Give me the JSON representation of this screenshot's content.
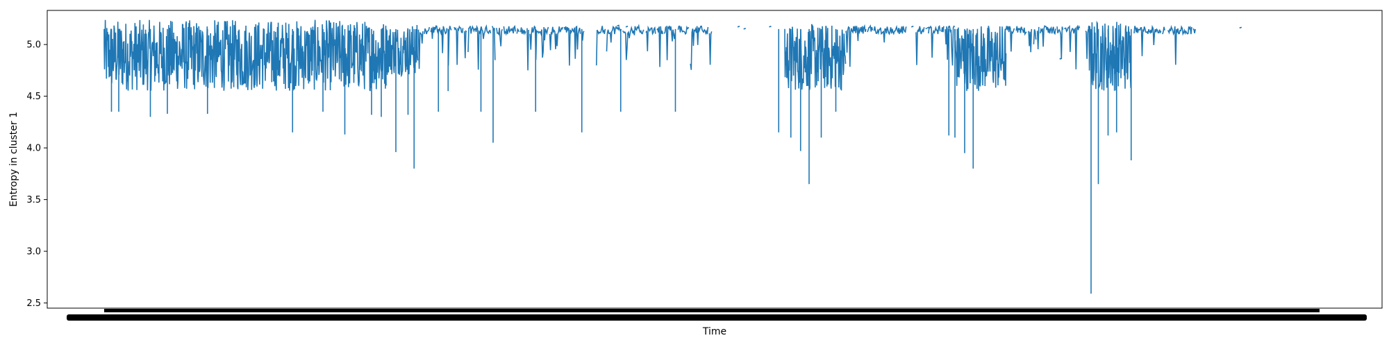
{
  "chart_data": {
    "type": "line",
    "title": "",
    "xlabel": "Time",
    "ylabel": "Entropy in cluster 1",
    "ylim": [
      2.45,
      5.33
    ],
    "yticks": [
      2.5,
      3.0,
      3.5,
      4.0,
      4.5,
      5.0
    ],
    "ytick_labels": [
      "2.5",
      "3.0",
      "3.5",
      "4.0",
      "4.5",
      "5.0"
    ],
    "x_tick_labels_note": "x tick labels are densely overlapping timestamps and unreadable",
    "x_range": [
      0,
      1000
    ],
    "grid": false,
    "legend": "none",
    "series": [
      {
        "color": "#1f77b4",
        "baseline": 5.15,
        "spikes": [
          {
            "x": 6,
            "y": 4.35
          },
          {
            "x": 12,
            "y": 4.35
          },
          {
            "x": 38,
            "y": 4.3
          },
          {
            "x": 52,
            "y": 4.33
          },
          {
            "x": 85,
            "y": 4.33
          },
          {
            "x": 155,
            "y": 4.15
          },
          {
            "x": 180,
            "y": 4.35
          },
          {
            "x": 198,
            "y": 4.13
          },
          {
            "x": 220,
            "y": 4.32
          },
          {
            "x": 228,
            "y": 4.3
          },
          {
            "x": 240,
            "y": 3.96
          },
          {
            "x": 250,
            "y": 4.32
          },
          {
            "x": 255,
            "y": 3.8
          },
          {
            "x": 275,
            "y": 4.35
          },
          {
            "x": 283,
            "y": 4.55
          },
          {
            "x": 310,
            "y": 4.35
          },
          {
            "x": 320,
            "y": 4.05
          },
          {
            "x": 355,
            "y": 4.35
          },
          {
            "x": 393,
            "y": 4.15
          },
          {
            "x": 425,
            "y": 4.35
          },
          {
            "x": 470,
            "y": 4.35
          },
          {
            "x": 555,
            "y": 4.15
          },
          {
            "x": 565,
            "y": 4.1
          },
          {
            "x": 573,
            "y": 3.97
          },
          {
            "x": 580,
            "y": 3.65
          },
          {
            "x": 590,
            "y": 4.1
          },
          {
            "x": 602,
            "y": 4.35
          },
          {
            "x": 695,
            "y": 4.12
          },
          {
            "x": 700,
            "y": 4.1
          },
          {
            "x": 708,
            "y": 3.95
          },
          {
            "x": 715,
            "y": 3.8
          },
          {
            "x": 812,
            "y": 2.59
          },
          {
            "x": 818,
            "y": 3.65
          },
          {
            "x": 826,
            "y": 4.12
          },
          {
            "x": 833,
            "y": 4.15
          },
          {
            "x": 845,
            "y": 3.88
          }
        ],
        "dense_segments": [
          {
            "start": 0,
            "end": 232,
            "min": 4.55,
            "max": 5.24
          },
          {
            "start": 232,
            "end": 258,
            "min": 4.7,
            "max": 5.2
          },
          {
            "start": 560,
            "end": 610,
            "min": 4.55,
            "max": 5.2
          },
          {
            "start": 700,
            "end": 742,
            "min": 4.55,
            "max": 5.2
          },
          {
            "start": 810,
            "end": 845,
            "min": 4.55,
            "max": 5.24
          }
        ],
        "sparse_segments": [
          {
            "start": 258,
            "end": 395
          },
          {
            "start": 405,
            "end": 500
          },
          {
            "start": 610,
            "end": 660
          },
          {
            "start": 668,
            "end": 700
          },
          {
            "start": 742,
            "end": 810
          },
          {
            "start": 845,
            "end": 898
          }
        ],
        "isolated_points": [
          {
            "x": 423,
            "y": 5.18
          },
          {
            "x": 430,
            "y": 5.17
          },
          {
            "x": 522,
            "y": 5.17
          },
          {
            "x": 527,
            "y": 5.15
          },
          {
            "x": 548,
            "y": 5.17
          },
          {
            "x": 665,
            "y": 5.17
          },
          {
            "x": 671,
            "y": 5.15
          },
          {
            "x": 678,
            "y": 5.16
          },
          {
            "x": 787,
            "y": 4.86
          },
          {
            "x": 935,
            "y": 5.16
          }
        ]
      }
    ]
  }
}
